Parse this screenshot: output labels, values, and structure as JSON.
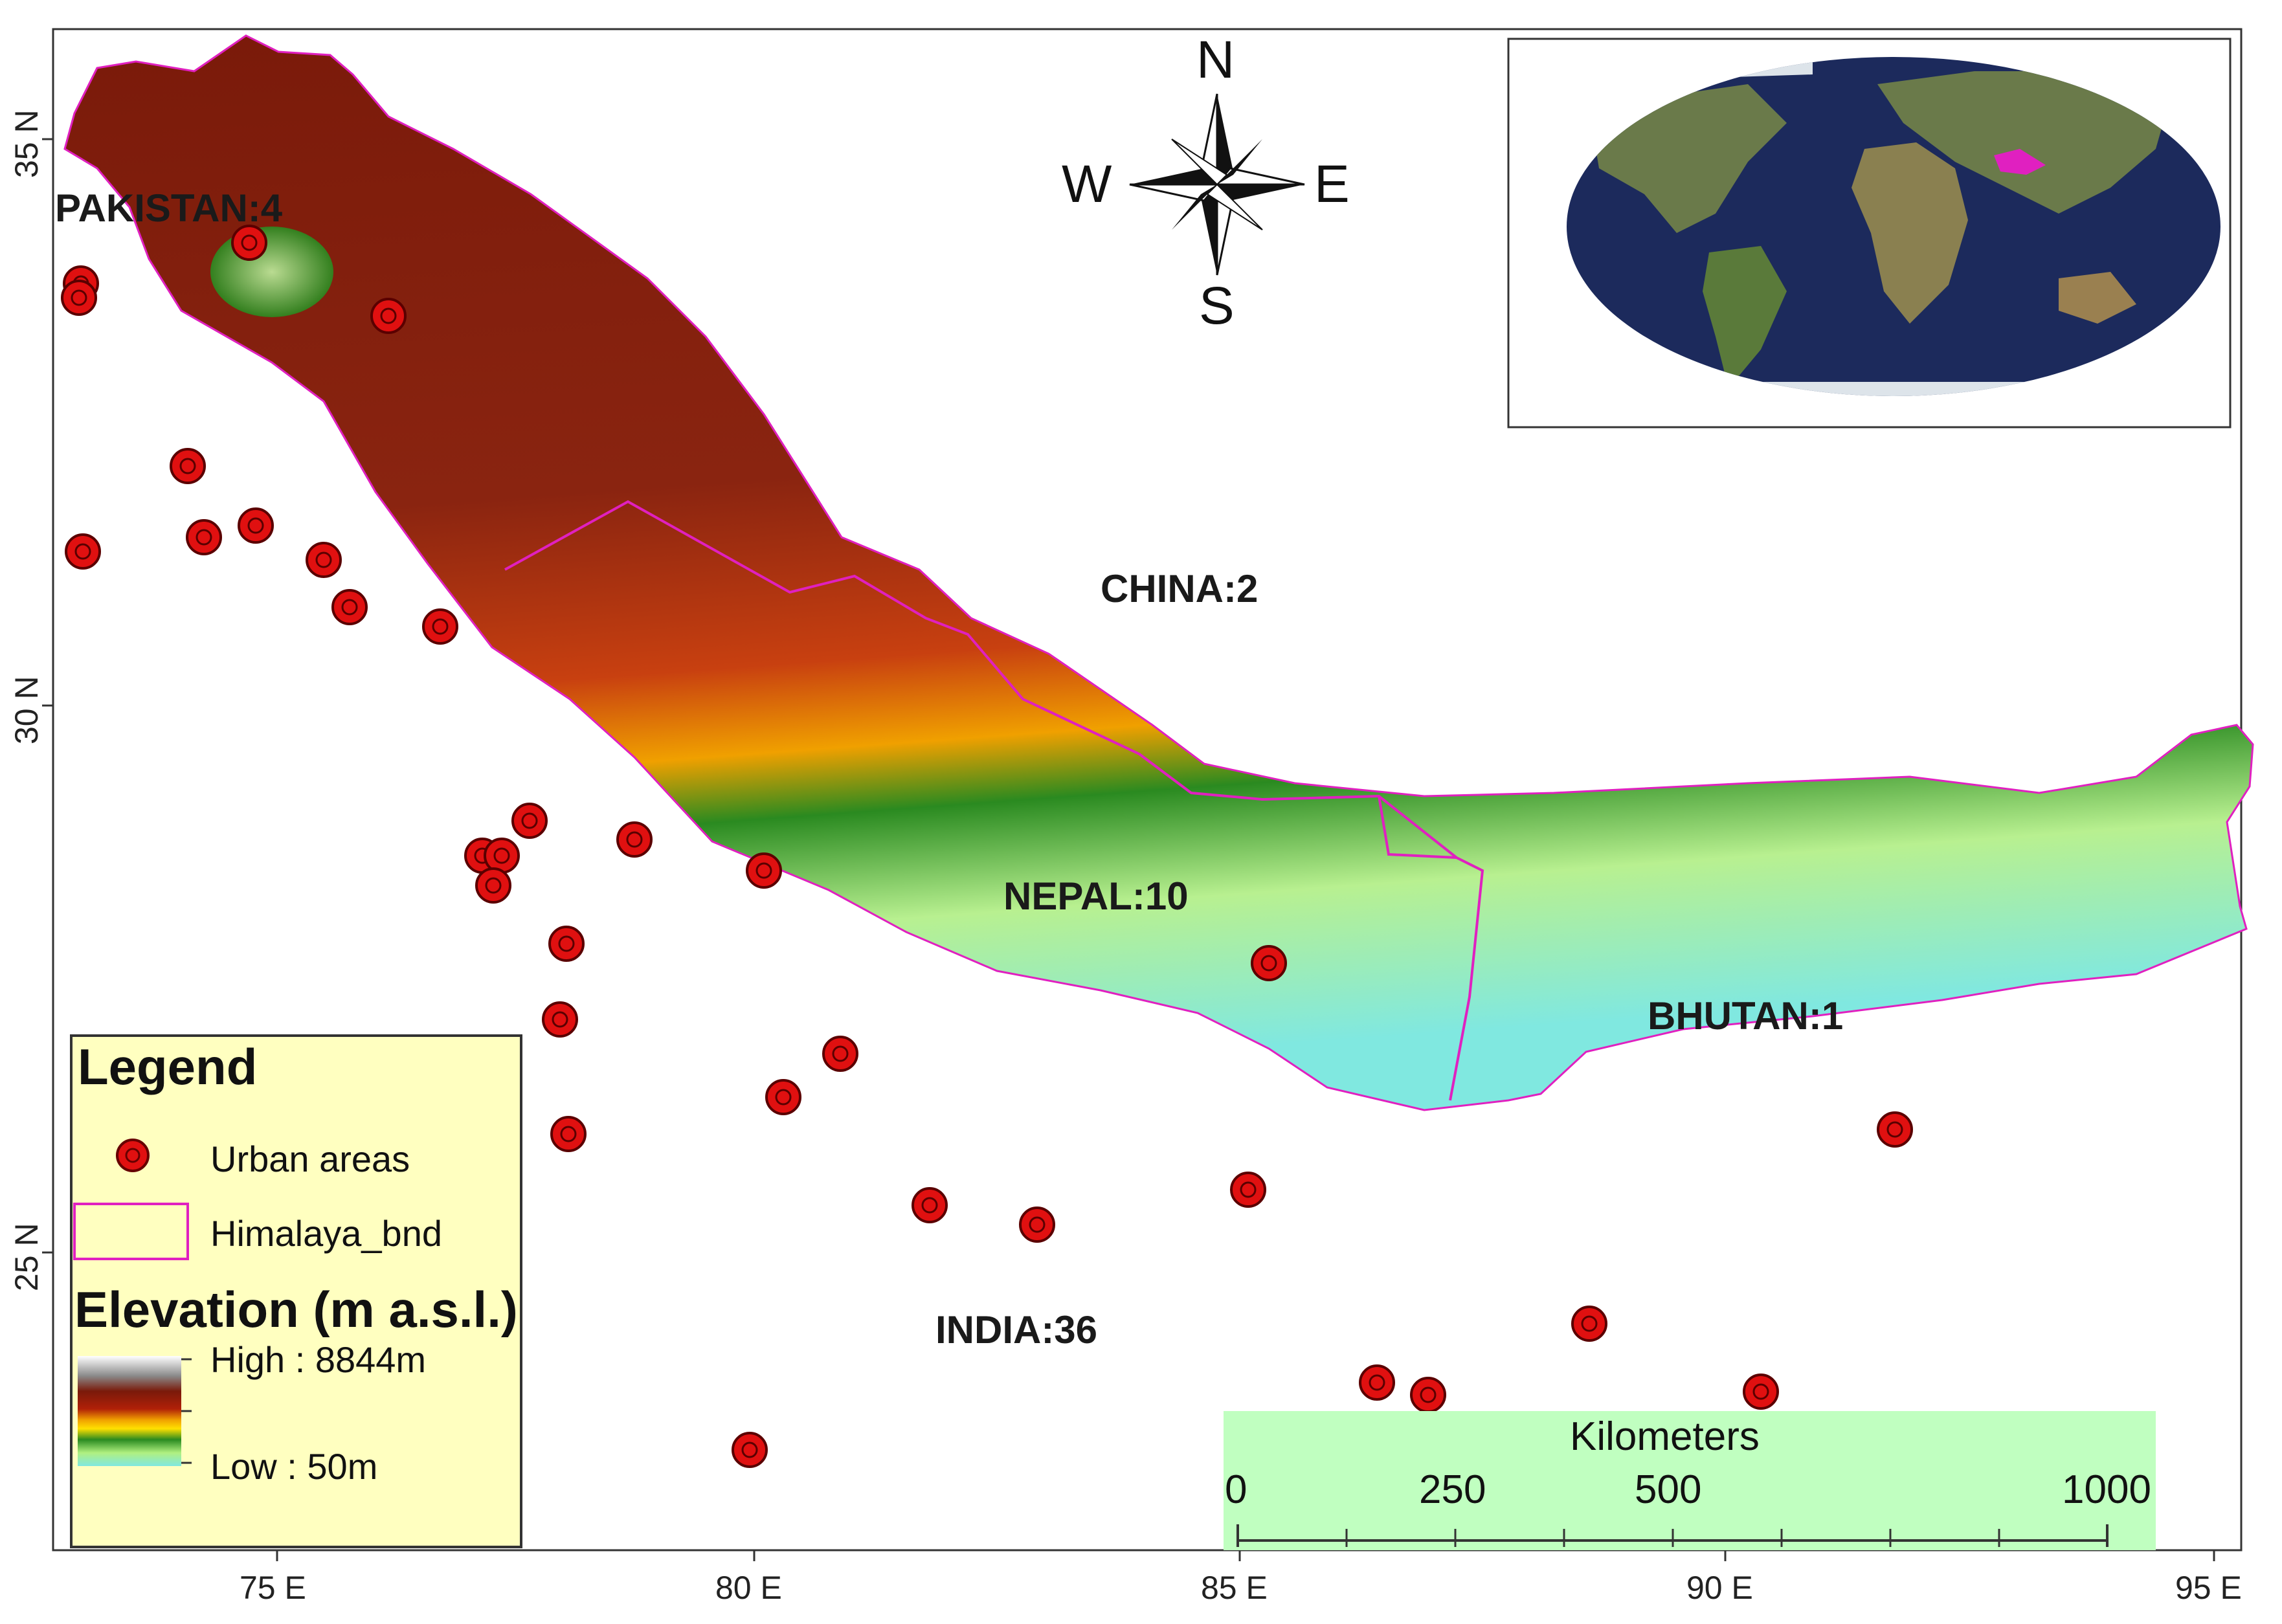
{
  "map": {
    "compass": {
      "north": "N",
      "south": "S",
      "east": "E",
      "west": "W"
    },
    "countries": {
      "pakistan": "PAKISTAN:4",
      "china": "CHINA:2",
      "nepal": "NEPAL:10",
      "bhutan": "BHUTAN:1",
      "india": "INDIA:36"
    },
    "x_ticks": [
      "75 E",
      "80 E",
      "85 E",
      "90 E",
      "95 E"
    ],
    "y_ticks": [
      "35 N",
      "30 N",
      "25 N"
    ]
  },
  "legend": {
    "title": "Legend",
    "urban_label": "Urban areas",
    "boundary_label": "Himalaya_bnd",
    "elevation_title": "Elevation (m a.s.l.)",
    "high_label": "High : 8844m",
    "low_label": "Low : 50m"
  },
  "scale_bar": {
    "title": "Kilometers",
    "ticks": [
      "0",
      "250",
      "500",
      "1000"
    ]
  },
  "colors": {
    "boundary": "#e020c0",
    "urban_fill": "#e01010",
    "legend_bg": "#ffffc0",
    "scale_bg": "#c0ffc0",
    "inset_ocean": "#1c2a5c"
  }
}
